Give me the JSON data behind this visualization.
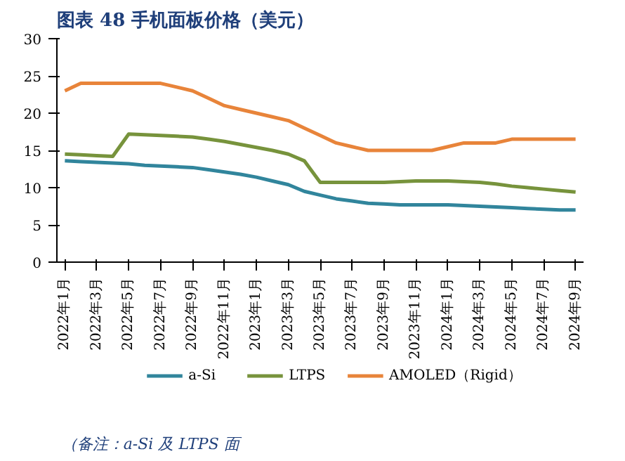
{
  "chart_data": {
    "type": "line",
    "title": "图表 48   手机面板价格（美元）",
    "annotations": [
      "（备注：a-Si 及 LTPS 面"
    ],
    "categories": [
      "2022年1月",
      null,
      "2022年3月",
      null,
      "2022年5月",
      null,
      "2022年7月",
      null,
      "2022年9月",
      null,
      "2022年11月",
      null,
      "2023年1月",
      null,
      "2023年3月",
      null,
      "2023年5月",
      null,
      "2023年7月",
      null,
      "2023年9月",
      null,
      "2023年11月",
      null,
      "2024年1月",
      null,
      "2024年3月",
      null,
      "2024年5月",
      null,
      "2024年7月",
      null,
      "2024年9月"
    ],
    "series": [
      {
        "name": "a-Si",
        "color": "#31859c",
        "values": [
          13.6,
          13.5,
          13.4,
          13.3,
          13.2,
          13.0,
          12.9,
          12.8,
          12.7,
          12.4,
          12.1,
          11.8,
          11.4,
          10.9,
          10.4,
          9.5,
          9.0,
          8.5,
          8.2,
          7.9,
          7.8,
          7.7,
          7.7,
          7.7,
          7.7,
          7.6,
          7.5,
          7.4,
          7.3,
          7.2,
          7.1,
          7.0,
          7.0
        ]
      },
      {
        "name": "LTPS",
        "color": "#77933c",
        "values": [
          14.5,
          14.4,
          14.3,
          14.2,
          17.2,
          17.1,
          17.0,
          16.9,
          16.8,
          16.5,
          16.2,
          15.8,
          15.4,
          15.0,
          14.5,
          13.6,
          10.7,
          10.7,
          10.7,
          10.7,
          10.7,
          10.8,
          10.9,
          10.9,
          10.9,
          10.8,
          10.7,
          10.5,
          10.2,
          10.0,
          9.8,
          9.6,
          9.4
        ]
      },
      {
        "name": "AMOLED（Rigid）",
        "color": "#e8843a",
        "values": [
          23,
          24,
          24,
          24,
          24,
          24,
          24,
          23.5,
          23,
          22,
          21,
          20.5,
          20,
          19.5,
          19,
          18,
          17,
          16,
          15.5,
          15,
          15,
          15,
          15,
          15,
          15.5,
          16,
          16,
          16,
          16.5,
          16.5,
          16.5,
          16.5,
          16.5
        ]
      }
    ],
    "ylim": [
      0,
      30
    ],
    "yticks": [
      0,
      5,
      10,
      15,
      20,
      25,
      30
    ],
    "legend": "bottom",
    "line_style": "solid"
  }
}
